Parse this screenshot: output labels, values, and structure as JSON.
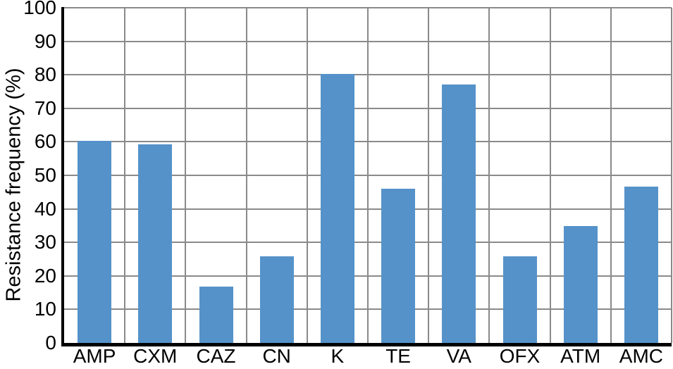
{
  "chart_data": {
    "type": "bar",
    "title": "",
    "xlabel": "",
    "ylabel": "Resistance frequency (%)",
    "categories": [
      "AMP",
      "CXM",
      "CAZ",
      "CN",
      "K",
      "TE",
      "VA",
      "OFX",
      "ATM",
      "AMC"
    ],
    "values": [
      60.3,
      59.3,
      16.9,
      25.8,
      80.3,
      46.1,
      77.0,
      25.8,
      34.9,
      46.6
    ],
    "ylim": [
      0,
      100
    ],
    "ytick_step": 10,
    "ytick_labels": [
      "0",
      "10",
      "20",
      "30",
      "40",
      "50",
      "60",
      "70",
      "80",
      "90",
      "100"
    ],
    "grid": true,
    "legend": null,
    "colors": {
      "bar": "#5592c9",
      "grid": "#8a8a8a",
      "axis": "#000000",
      "text": "#000000",
      "background": "#ffffff"
    }
  }
}
